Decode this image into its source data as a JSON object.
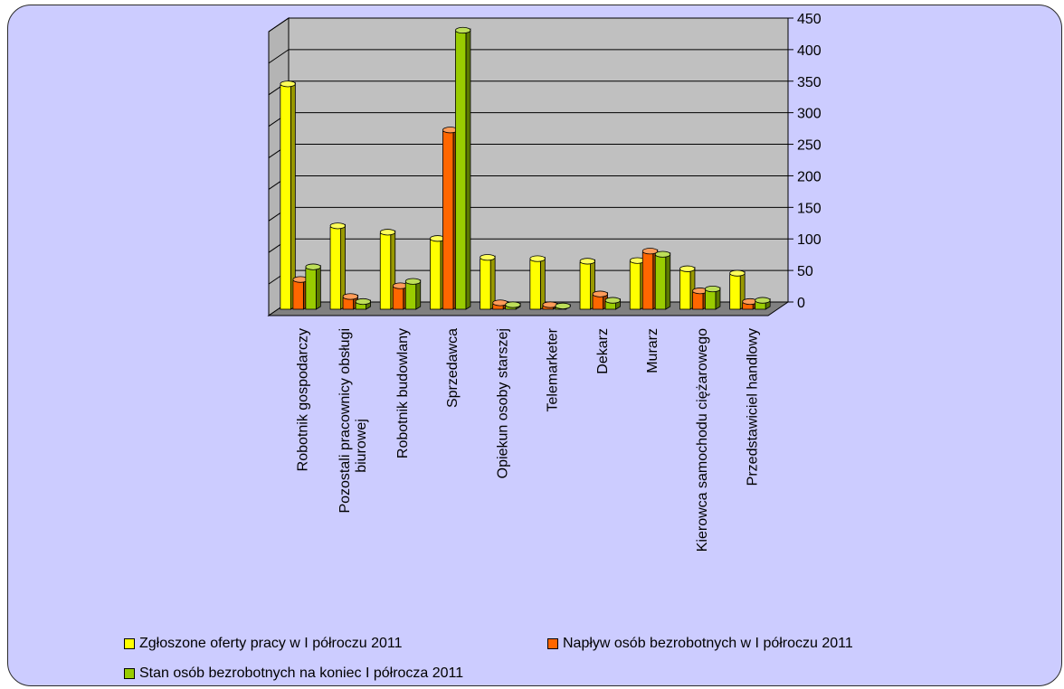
{
  "chart_data": {
    "type": "bar",
    "three_d": true,
    "categories": [
      "Robotnik gospodarczy",
      "Pozostali pracownicy obsługi biurowej",
      "Robotnik budowlany",
      "Sprzedawca",
      "Opiekun osoby starszej",
      "Telemarketer",
      "Dekarz",
      "Murarz",
      "Kierowca samochodu ciężarowego",
      "Przedstawiciel handlowy"
    ],
    "category_label_lines": [
      [
        "Robotnik gospodarczy"
      ],
      [
        "Pozostali pracownicy obsługi",
        "biurowej"
      ],
      [
        "Robotnik budowlany"
      ],
      [
        "Sprzedawca"
      ],
      [
        "Opiekun osoby starszej"
      ],
      [
        "Telemarketer"
      ],
      [
        "Dekarz"
      ],
      [
        "Murarz"
      ],
      [
        "Kierowca samochodu ciężarowego"
      ],
      [
        "Przedstawiciel handlowy"
      ]
    ],
    "series": [
      {
        "name": "Zgłoszone oferty pracy w  I półroczu 2011",
        "color": "#ffff00",
        "values": [
          355,
          130,
          120,
          110,
          80,
          78,
          74,
          75,
          62,
          55
        ]
      },
      {
        "name": "Napływ  osób bezrobotnych w  I półroczu 2011",
        "color": "#ff6600",
        "values": [
          45,
          18,
          35,
          282,
          8,
          5,
          22,
          90,
          27,
          10
        ]
      },
      {
        "name": "Stan osób bezrobotnych na koniec I półrocza 2011",
        "color": "#99cc00",
        "values": [
          65,
          10,
          42,
          440,
          5,
          3,
          12,
          85,
          30,
          12
        ]
      }
    ],
    "ylim": [
      0,
      450
    ],
    "yticks": [
      "0",
      "50",
      "100",
      "150",
      "200",
      "250",
      "300",
      "350",
      "400",
      "450"
    ],
    "y_axis_side": "right",
    "grid": true,
    "legend_position": "bottom",
    "colors": {
      "background": "#ccccff",
      "wall": "#c0c0c0",
      "floor": "#808080",
      "border": "#000000"
    }
  }
}
